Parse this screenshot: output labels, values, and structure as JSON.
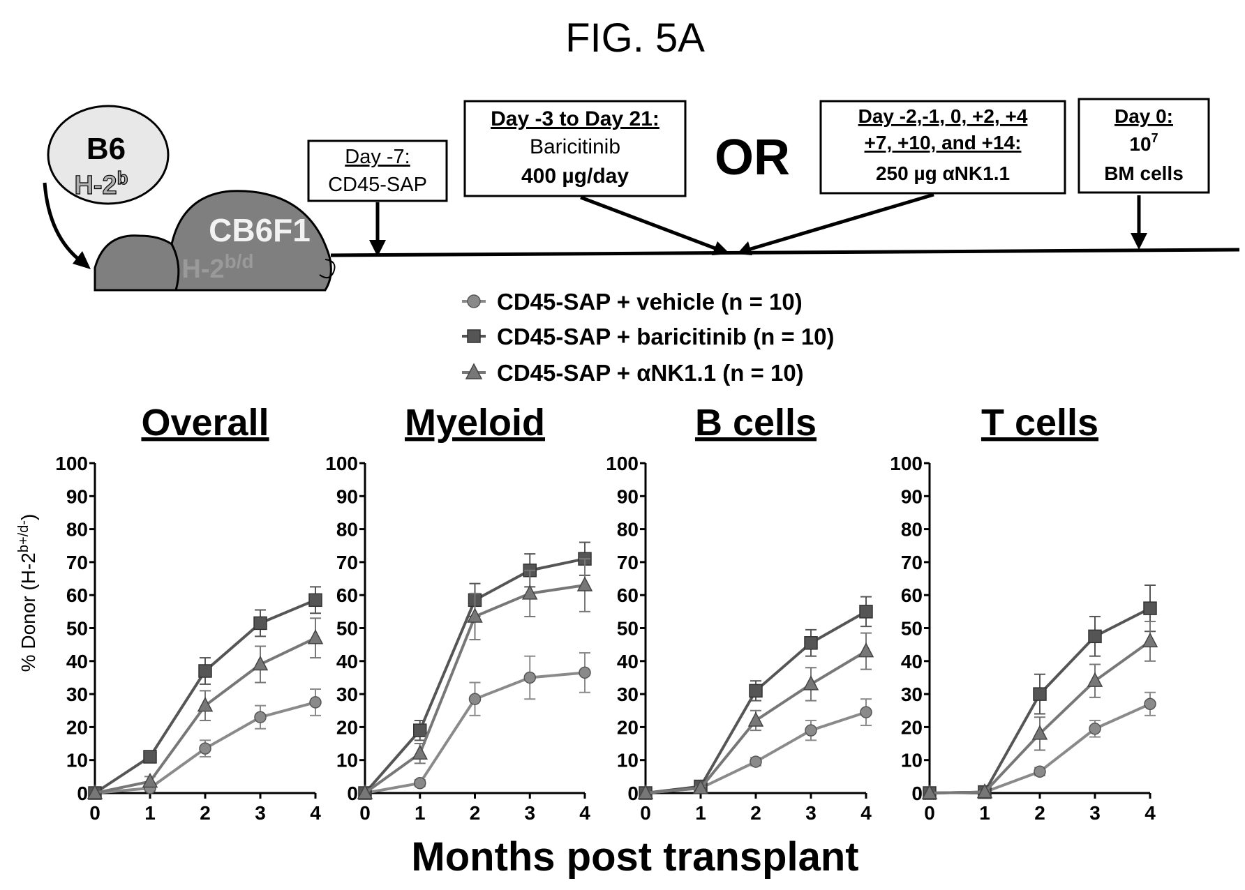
{
  "figure_title": "FIG. 5A",
  "schematic": {
    "donor": {
      "strain": "B6",
      "haplotype": "H-2",
      "haplotype_sup": "b"
    },
    "recipient": {
      "strain": "CB6F1",
      "haplotype": "H-2",
      "haplotype_sup": "b/d"
    },
    "boxes": [
      {
        "label": "Day -7:",
        "lines": [
          "CD45-SAP"
        ]
      },
      {
        "label": "Day -3 to Day 21:",
        "lines": [
          "Baricitinib",
          "400  µg/day"
        ]
      },
      {
        "label": "Day -2,-1, 0, +2, +4",
        "label2": "+7, +10, and +14:",
        "lines": [
          "250  µg αNK1.1"
        ]
      },
      {
        "label": "Day 0:",
        "lines": [
          "10",
          "BM cells"
        ],
        "sup": "7"
      }
    ],
    "or_text": "OR"
  },
  "colors": {
    "vehicle": "#8a8a8a",
    "baricitinib": "#555555",
    "ank": "#777777",
    "axis": "#000000"
  },
  "chart_data": {
    "type": "line",
    "series_legend": [
      {
        "key": "vehicle",
        "name": "CD45-SAP + vehicle (n = 10)",
        "marker": "circle"
      },
      {
        "key": "baricitinib",
        "name": "CD45-SAP + baricitinib (n = 10)",
        "marker": "square"
      },
      {
        "key": "ank",
        "name": "CD45-SAP + αNK1.1 (n = 10)",
        "marker": "triangle"
      }
    ],
    "x": [
      0,
      1,
      2,
      3,
      4
    ],
    "x_ticks": [
      "0",
      "1",
      "2",
      "3",
      "4"
    ],
    "y_ticks": [
      "0",
      "10",
      "20",
      "30",
      "40",
      "50",
      "60",
      "70",
      "80",
      "90",
      "100"
    ],
    "ylim": [
      0,
      100
    ],
    "xlim": [
      0,
      4
    ],
    "ylabel": "% Donor (H-2",
    "ylabel_sup": "b+/d-",
    "ylabel_end": ")",
    "xlabel": "Months post transplant",
    "panels": [
      {
        "title": "Overall",
        "series": [
          {
            "key": "vehicle",
            "values": [
              0,
              1.5,
              13.5,
              23,
              27.5
            ],
            "errors": [
              0,
              0.8,
              2.5,
              3.5,
              4
            ]
          },
          {
            "key": "baricitinib",
            "values": [
              0,
              11,
              37,
              51.5,
              58.5
            ],
            "errors": [
              0,
              1.5,
              4,
              4,
              4
            ]
          },
          {
            "key": "ank",
            "values": [
              0,
              3.5,
              26.5,
              39,
              47
            ],
            "errors": [
              0,
              1.5,
              4.5,
              5.5,
              6
            ]
          }
        ]
      },
      {
        "title": "Myeloid",
        "series": [
          {
            "key": "vehicle",
            "values": [
              0,
              3,
              28.5,
              35,
              36.5
            ],
            "errors": [
              0,
              1,
              5,
              6.5,
              6
            ]
          },
          {
            "key": "baricitinib",
            "values": [
              0,
              19,
              58.5,
              67.5,
              71
            ],
            "errors": [
              0,
              3,
              5,
              5,
              5
            ]
          },
          {
            "key": "ank",
            "values": [
              0,
              12,
              53.5,
              60.5,
              63
            ],
            "errors": [
              0,
              3,
              7,
              7,
              8
            ]
          }
        ]
      },
      {
        "title": "B cells",
        "series": [
          {
            "key": "vehicle",
            "values": [
              0,
              1.5,
              9.5,
              19,
              24.5
            ],
            "errors": [
              0,
              0.5,
              1.2,
              3,
              4
            ]
          },
          {
            "key": "baricitinib",
            "values": [
              0,
              2,
              31,
              45.5,
              55
            ],
            "errors": [
              0,
              0.8,
              3,
              4,
              4.5
            ]
          },
          {
            "key": "ank",
            "values": [
              0,
              1.5,
              22,
              33,
              43
            ],
            "errors": [
              0,
              0.5,
              3,
              5,
              5.5
            ]
          }
        ]
      },
      {
        "title": "T cells",
        "series": [
          {
            "key": "vehicle",
            "values": [
              0,
              0.3,
              6.5,
              19.5,
              27
            ],
            "errors": [
              0,
              0.3,
              1.2,
              2.5,
              3.5
            ]
          },
          {
            "key": "baricitinib",
            "values": [
              0,
              0.3,
              30,
              47.5,
              56
            ],
            "errors": [
              0,
              0.3,
              6,
              6,
              7
            ]
          },
          {
            "key": "ank",
            "values": [
              0,
              0.3,
              18,
              34,
              46
            ],
            "errors": [
              0,
              0.3,
              5,
              5,
              6
            ]
          }
        ]
      }
    ]
  }
}
